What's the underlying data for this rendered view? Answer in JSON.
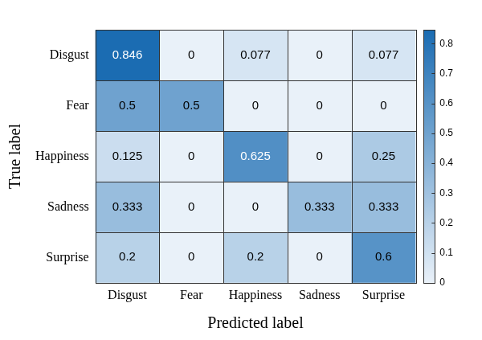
{
  "chart_data": {
    "type": "heatmap",
    "x_label": "Predicted label",
    "y_label": "True label",
    "x_categories": [
      "Disgust",
      "Fear",
      "Happiness",
      "Sadness",
      "Surprise"
    ],
    "y_categories": [
      "Disgust",
      "Fear",
      "Happiness",
      "Sadness",
      "Surprise"
    ],
    "cells": [
      [
        0.846,
        0,
        0.077,
        0,
        0.077
      ],
      [
        0.5,
        0.5,
        0,
        0,
        0
      ],
      [
        0.125,
        0,
        0.625,
        0,
        0.25
      ],
      [
        0.333,
        0,
        0,
        0.333,
        0.333
      ],
      [
        0.2,
        0,
        0.2,
        0,
        0.6
      ]
    ],
    "data_labels": true,
    "colorbar": {
      "range": [
        0,
        0.846
      ],
      "ticks": [
        0,
        0.1,
        0.2,
        0.3,
        0.4,
        0.5,
        0.6,
        0.7,
        0.8
      ],
      "colors": [
        "#e9f1f9",
        "#1b6cb2"
      ]
    }
  }
}
